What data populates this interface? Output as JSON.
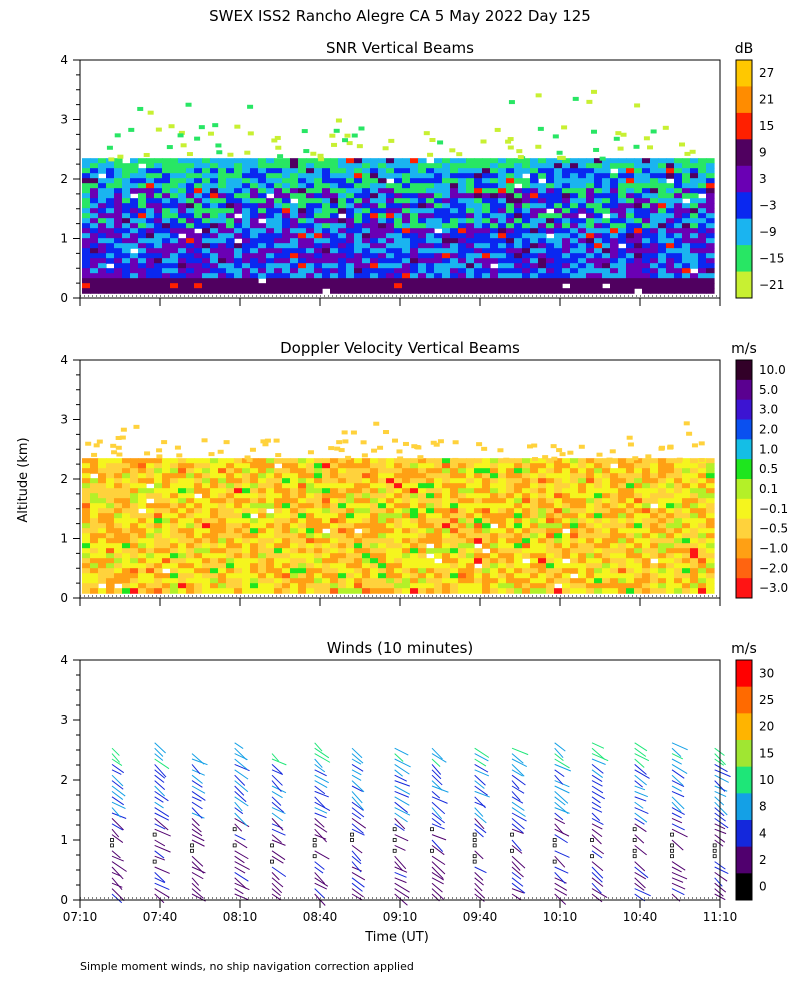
{
  "figure": {
    "title": "SWEX ISS2 Rancho Alegre CA   5 May 2022 Day 125",
    "ylabel": "Altitude (km)",
    "xlabel": "Time (UT)",
    "footnote": "Simple moment winds, no ship navigation correction applied"
  },
  "chart_data": [
    {
      "type": "heatmap",
      "title": "SNR Vertical Beams",
      "colorbar_unit": "dB",
      "colorbar_labels": [
        "27",
        "21",
        "15",
        "9",
        "3",
        "−3",
        "−9",
        "−15",
        "−21"
      ],
      "colorbar_colors": [
        "#ffc800",
        "#ff8c00",
        "#ff2000",
        "#500060",
        "#6a00b4",
        "#0a28f0",
        "#1ab4f0",
        "#28e664",
        "#c8f032"
      ],
      "ylim": [
        0,
        4
      ],
      "yticks": [
        "0",
        "1",
        "2",
        "3",
        "4"
      ],
      "xticks": [
        "07:10",
        "07:40",
        "08:10",
        "08:40",
        "09:10",
        "09:40",
        "10:10",
        "10:40",
        "11:10"
      ],
      "show_xtick_labels": false,
      "xrange_minutes": [
        430,
        670
      ],
      "data_altitude_range_km": [
        0.15,
        2.35
      ],
      "scattered_echo_top_km": 3.5
    },
    {
      "type": "heatmap",
      "title": "Doppler Velocity Vertical Beams",
      "colorbar_unit": "m/s",
      "colorbar_labels": [
        "10.0",
        "5.0",
        "3.0",
        "2.0",
        "1.0",
        "0.5",
        "0.1",
        "−0.1",
        "−0.5",
        "−1.0",
        "−2.0",
        "−3.0"
      ],
      "colorbar_colors": [
        "#320028",
        "#5a0090",
        "#3c14d2",
        "#0a50f0",
        "#14bee6",
        "#1ee61e",
        "#b4f028",
        "#f5f51e",
        "#ffd23c",
        "#ffa014",
        "#ff6410",
        "#ff1414"
      ],
      "ylim": [
        0,
        4
      ],
      "yticks": [
        "0",
        "1",
        "2",
        "3",
        "4"
      ],
      "xticks": [
        "07:10",
        "07:40",
        "08:10",
        "08:40",
        "09:10",
        "09:40",
        "10:10",
        "10:40",
        "11:10"
      ],
      "show_xtick_labels": false,
      "xrange_minutes": [
        430,
        670
      ],
      "data_altitude_range_km": [
        0.15,
        2.35
      ]
    },
    {
      "type": "scatter",
      "title": "Winds (10 minutes)",
      "colorbar_unit": "m/s",
      "colorbar_labels": [
        "30",
        "25",
        "20",
        "15",
        "10",
        "8",
        "4",
        "2",
        "0"
      ],
      "colorbar_colors": [
        "#ff0000",
        "#ff6a00",
        "#ffb400",
        "#a0e632",
        "#1ee678",
        "#14a0e6",
        "#1428dc",
        "#50006e",
        "#000000"
      ],
      "ylim": [
        0,
        4
      ],
      "yticks": [
        "0",
        "1",
        "2",
        "3",
        "4"
      ],
      "xticks": [
        "07:10",
        "07:40",
        "08:10",
        "08:40",
        "09:10",
        "09:40",
        "10:10",
        "10:40",
        "11:10"
      ],
      "show_xtick_labels": true,
      "xrange_minutes": [
        430,
        670
      ],
      "wind_profile_times_minutes": [
        442,
        458,
        472,
        488,
        502,
        518,
        532,
        548,
        562,
        578,
        592,
        608,
        622,
        638,
        652,
        668
      ],
      "wind_barb_top_km": 2.6
    }
  ]
}
